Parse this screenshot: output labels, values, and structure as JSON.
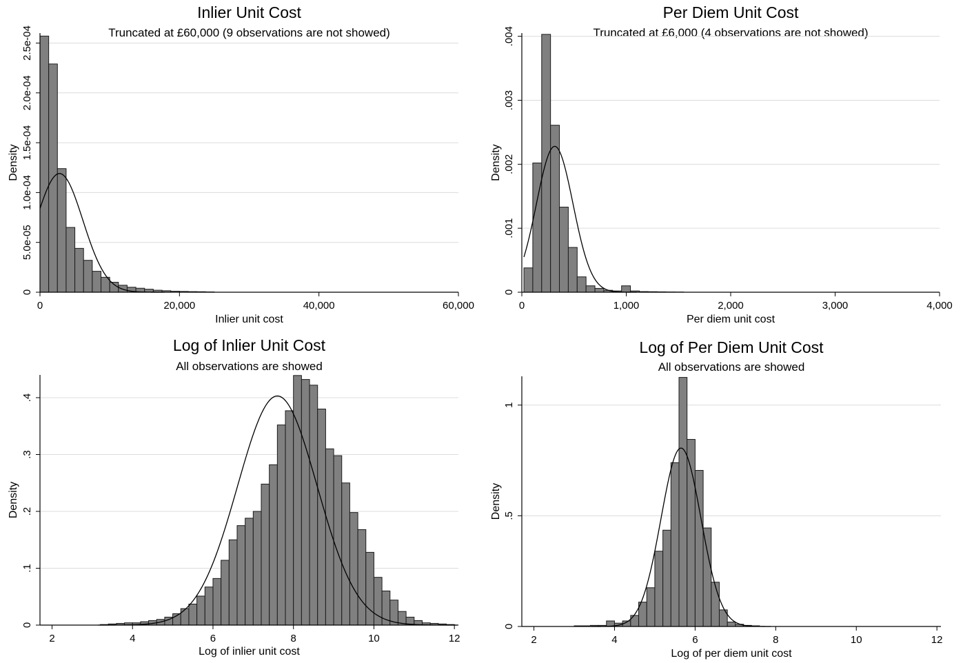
{
  "chart_data": [
    {
      "type": "histogram",
      "title": "Inlier Unit Cost",
      "subtitle": "Truncated at £60,000 (9 observations are not showed)",
      "xlabel": "Inlier unit cost",
      "ylabel": "Density",
      "xlim": [
        0,
        60000
      ],
      "ylim": [
        0,
        0.00026
      ],
      "x_ticks": [
        0,
        20000,
        40000,
        60000
      ],
      "x_tick_labels": [
        "0",
        "20,000",
        "40,000",
        "60,000"
      ],
      "y_ticks": [
        0,
        5e-05,
        0.0001,
        0.00015,
        0.0002,
        0.00025
      ],
      "y_tick_labels": [
        "0",
        "5.0e-05",
        "1.0e-04",
        "1.5e-04",
        "2.0e-04",
        "2.5e-04"
      ],
      "grid": true,
      "bin_width": 1250,
      "bin_start": 0,
      "values": [
        0.000257,
        0.000229,
        0.000124,
        6.5e-05,
        4.4e-05,
        3.2e-05,
        2.1e-05,
        1.5e-05,
        1e-05,
        7e-06,
        5e-06,
        4e-06,
        3e-06,
        2e-06,
        1.5e-06,
        1e-06,
        8e-07,
        6e-07,
        5e-07,
        3e-07
      ],
      "normal_curve": {
        "mean": 2800,
        "sd": 3350
      },
      "bar_color": "#808080",
      "curve_color": "#000000"
    },
    {
      "type": "histogram",
      "title": "Per Diem Unit Cost",
      "subtitle": "Truncated at £6,000 (4 observations are not showed)",
      "xlabel": "Per diem unit cost",
      "ylabel": "Density",
      "xlim": [
        0,
        4000
      ],
      "ylim": [
        0,
        0.00405
      ],
      "x_ticks": [
        0,
        1000,
        2000,
        3000,
        4000
      ],
      "x_tick_labels": [
        "0",
        "1,000",
        "2,000",
        "3,000",
        "4,000"
      ],
      "y_ticks": [
        0,
        0.001,
        0.002,
        0.003,
        0.004
      ],
      "y_tick_labels": [
        "0",
        ".001",
        ".002",
        ".003",
        ".004"
      ],
      "grid": true,
      "bin_width": 85,
      "bin_start": 20,
      "values": [
        0.00038,
        0.00202,
        0.00403,
        0.00261,
        0.00133,
        0.0007,
        0.00024,
        0.0001,
        6e-05,
        3e-05,
        2e-05,
        0.0001,
        2e-05,
        1e-05,
        8e-06,
        6e-06,
        4e-06,
        3e-06
      ],
      "normal_curve": {
        "mean": 315,
        "sd": 175
      },
      "bar_color": "#808080",
      "curve_color": "#000000"
    },
    {
      "type": "histogram",
      "title": "Log of Inlier Unit Cost",
      "subtitle": "All observations are showed",
      "xlabel": "Log of inlier unit cost",
      "ylabel": "Density",
      "xlim": [
        1.7,
        12.1
      ],
      "ylim": [
        0,
        0.44
      ],
      "x_ticks": [
        2,
        4,
        6,
        8,
        10,
        12
      ],
      "x_tick_labels": [
        "2",
        "4",
        "6",
        "8",
        "10",
        "12"
      ],
      "y_ticks": [
        0,
        0.1,
        0.2,
        0.3,
        0.4
      ],
      "y_tick_labels": [
        "0",
        ".1",
        ".2",
        ".3",
        ".4"
      ],
      "grid": true,
      "bin_width": 0.2,
      "bin_start": 3.2,
      "values": [
        0.001,
        0.002,
        0.003,
        0.004,
        0.004,
        0.006,
        0.008,
        0.01,
        0.014,
        0.02,
        0.029,
        0.037,
        0.051,
        0.067,
        0.082,
        0.114,
        0.15,
        0.175,
        0.188,
        0.2,
        0.248,
        0.282,
        0.352,
        0.377,
        0.439,
        0.432,
        0.422,
        0.38,
        0.31,
        0.298,
        0.25,
        0.198,
        0.168,
        0.128,
        0.084,
        0.06,
        0.044,
        0.024,
        0.014,
        0.008,
        0.004,
        0.003,
        0.002,
        0.001
      ],
      "normal_curve": {
        "mean": 7.6,
        "sd": 0.99
      },
      "bar_color": "#808080",
      "curve_color": "#000000"
    },
    {
      "type": "histogram",
      "title": "Log of Per Diem Unit Cost",
      "subtitle": "All observations are showed",
      "xlabel": "Log of per diem unit cost",
      "ylabel": "Density",
      "xlim": [
        1.7,
        12.1
      ],
      "ylim": [
        0,
        1.13
      ],
      "x_ticks": [
        2,
        4,
        6,
        8,
        10,
        12
      ],
      "x_tick_labels": [
        "2",
        "4",
        "6",
        "8",
        "10",
        "12"
      ],
      "y_ticks": [
        0,
        0.5,
        1
      ],
      "y_tick_labels": [
        "0",
        ".5",
        "1"
      ],
      "grid": true,
      "bin_width": 0.2,
      "bin_start": 3.0,
      "values": [
        0.003,
        0.003,
        0.005,
        0.005,
        0.025,
        0.015,
        0.025,
        0.05,
        0.11,
        0.175,
        0.34,
        0.435,
        0.74,
        1.125,
        0.845,
        0.705,
        0.445,
        0.2,
        0.075,
        0.02,
        0.01,
        0.005,
        0.003
      ],
      "normal_curve": {
        "mean": 5.65,
        "sd": 0.495
      },
      "bar_color": "#808080",
      "curve_color": "#000000"
    }
  ]
}
